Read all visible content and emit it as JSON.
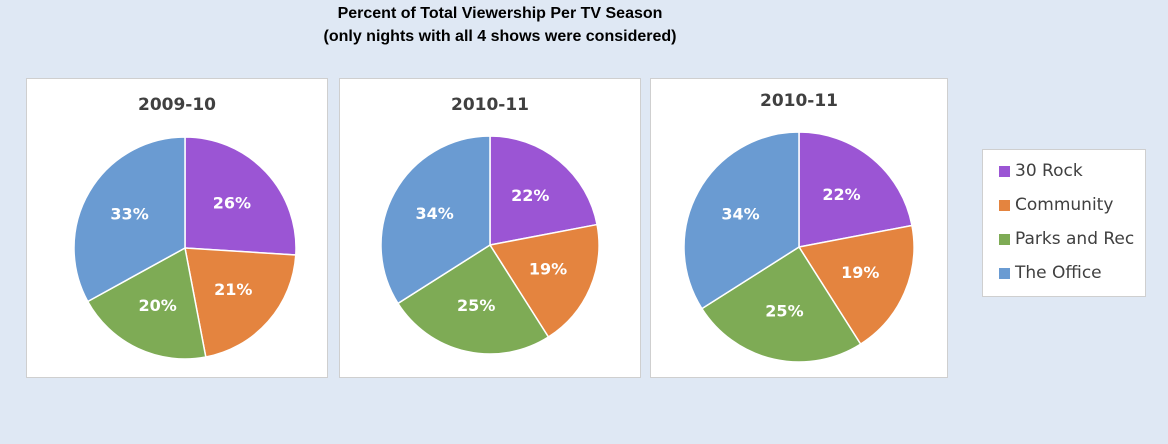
{
  "title": {
    "line1": "Percent of Total Viewership Per TV  Season",
    "line2": "(only nights with all 4 shows were considered)"
  },
  "legend": {
    "items": [
      {
        "label": "30 Rock",
        "color": "#9b55d4"
      },
      {
        "label": "Community",
        "color": "#e4843f"
      },
      {
        "label": "Parks and Rec",
        "color": "#7eab55"
      },
      {
        "label": "The Office",
        "color": "#6a9bd2"
      }
    ]
  },
  "chart_data": [
    {
      "type": "pie",
      "title": "2009-10",
      "categories": [
        "30 Rock",
        "Community",
        "Parks and Rec",
        "The Office"
      ],
      "values": [
        26,
        21,
        20,
        33
      ],
      "labels": [
        "26%",
        "21%",
        "20%",
        "33%"
      ]
    },
    {
      "type": "pie",
      "title": "2010-11",
      "categories": [
        "30 Rock",
        "Community",
        "Parks and Rec",
        "The Office"
      ],
      "values": [
        22,
        19,
        25,
        34
      ],
      "labels": [
        "22%",
        "19%",
        "25%",
        "34%"
      ]
    },
    {
      "type": "pie",
      "title": "2010-11",
      "categories": [
        "30 Rock",
        "Community",
        "Parks and Rec",
        "The Office"
      ],
      "values": [
        22,
        19,
        25,
        34
      ],
      "labels": [
        "22%",
        "19%",
        "25%",
        "34%"
      ]
    }
  ]
}
